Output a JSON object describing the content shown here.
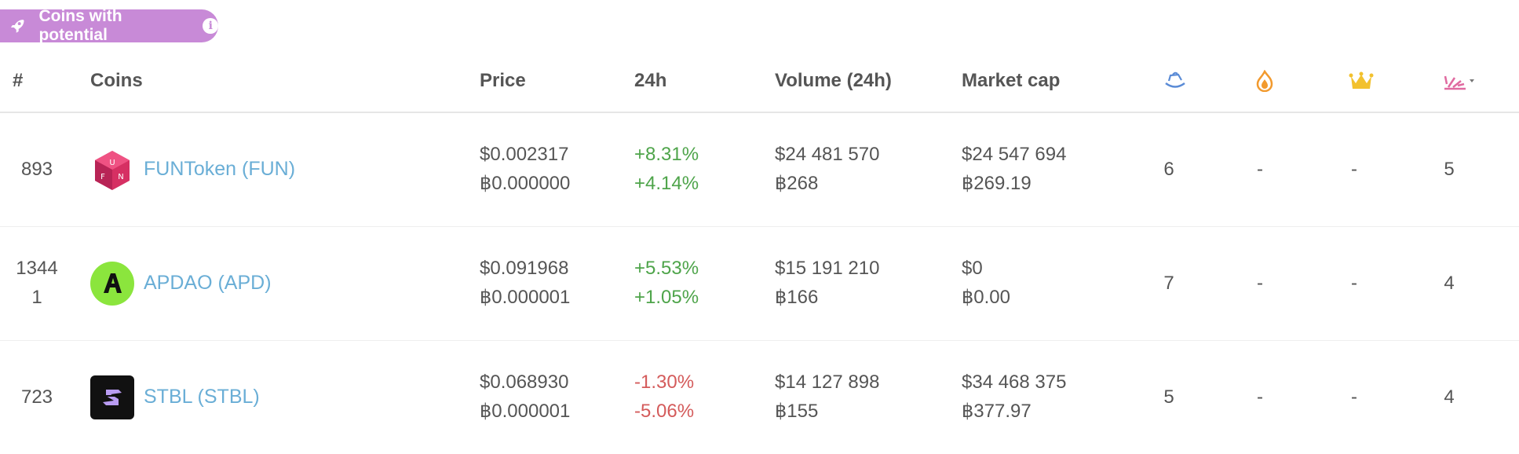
{
  "badge": {
    "label": "Coins with potential",
    "info": "i"
  },
  "columns": {
    "rank": "#",
    "coins": "Coins",
    "price": "Price",
    "change": "24h",
    "volume": "Volume (24h)",
    "marketcap": "Market cap"
  },
  "header_icons": [
    "boat-icon",
    "flame-icon",
    "crown-icon",
    "launch-icon"
  ],
  "rows": [
    {
      "rank": "893",
      "name": "FUNToken (FUN)",
      "logo": "funtoken-logo",
      "price_usd": "$0.002317",
      "price_btc": "฿0.000000",
      "change_usd": "+8.31%",
      "change_btc": "+4.14%",
      "volume_usd": "$24 481 570",
      "volume_btc": "฿268",
      "mcap_usd": "$24 547 694",
      "mcap_btc": "฿269.19",
      "c1": "6",
      "c2": "-",
      "c3": "-",
      "c4": "5"
    },
    {
      "rank": "1344",
      "rank_line2": "1",
      "name": "APDAO (APD)",
      "logo": "apdao-logo",
      "price_usd": "$0.091968",
      "price_btc": "฿0.000001",
      "change_usd": "+5.53%",
      "change_btc": "+1.05%",
      "volume_usd": "$15 191 210",
      "volume_btc": "฿166",
      "mcap_usd": "$0",
      "mcap_btc": "฿0.00",
      "c1": "7",
      "c2": "-",
      "c3": "-",
      "c4": "4"
    },
    {
      "rank": "723",
      "name": "STBL (STBL)",
      "logo": "stbl-logo",
      "price_usd": "$0.068930",
      "price_btc": "฿0.000001",
      "change_usd": "-1.30%",
      "change_btc": "-5.06%",
      "volume_usd": "$14 127 898",
      "volume_btc": "฿155",
      "mcap_usd": "$34 468 375",
      "mcap_btc": "฿377.97",
      "c1": "5",
      "c2": "-",
      "c3": "-",
      "c4": "4"
    }
  ],
  "colors": {
    "badge": "#c88ad7",
    "link": "#6aaed6",
    "up": "#4ea44a",
    "down": "#d45b5b"
  }
}
